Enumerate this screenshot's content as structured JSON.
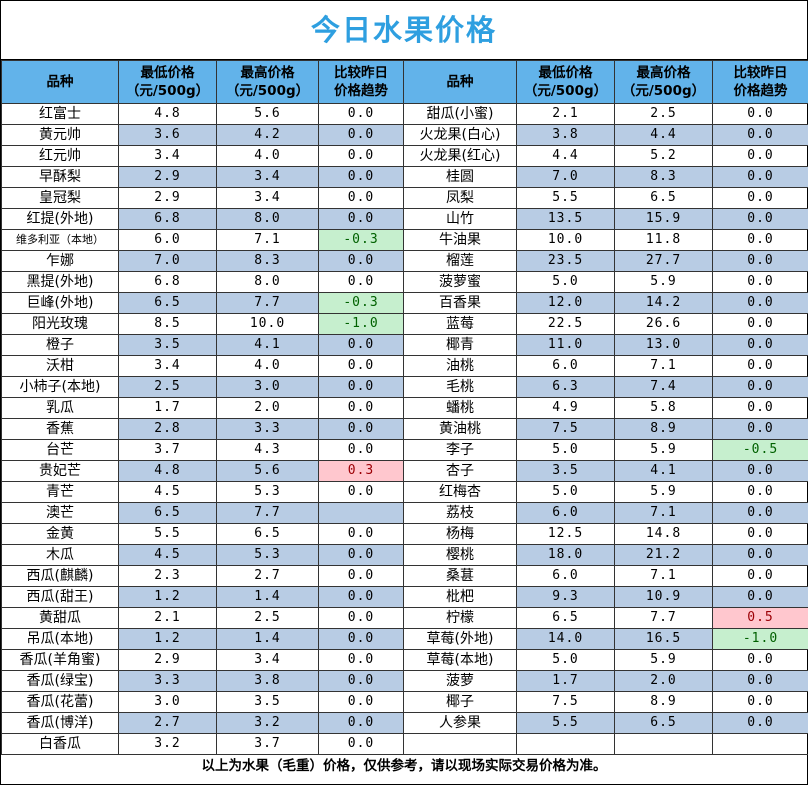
{
  "title": "今日水果价格",
  "headers": {
    "name": "品种",
    "low": "最低价格\n（元/500g）",
    "high": "最高价格\n（元/500g）",
    "trend": "比较昨日\n价格趋势"
  },
  "left_rows": [
    {
      "name": "红富士",
      "low": "4.8",
      "high": "5.6",
      "trend": "0.0"
    },
    {
      "name": "黄元帅",
      "low": "3.6",
      "high": "4.2",
      "trend": "0.0"
    },
    {
      "name": "红元帅",
      "low": "3.4",
      "high": "4.0",
      "trend": "0.0"
    },
    {
      "name": "早酥梨",
      "low": "2.9",
      "high": "3.4",
      "trend": "0.0"
    },
    {
      "name": "皇冠梨",
      "low": "2.9",
      "high": "3.4",
      "trend": "0.0"
    },
    {
      "name": "红提(外地)",
      "low": "6.8",
      "high": "8.0",
      "trend": "0.0"
    },
    {
      "name": "维多利亚（本地）",
      "low": "6.0",
      "high": "7.1",
      "trend": "-0.3"
    },
    {
      "name": "乍娜",
      "low": "7.0",
      "high": "8.3",
      "trend": "0.0"
    },
    {
      "name": "黑提(外地)",
      "low": "6.8",
      "high": "8.0",
      "trend": "0.0"
    },
    {
      "name": "巨峰(外地)",
      "low": "6.5",
      "high": "7.7",
      "trend": "-0.3"
    },
    {
      "name": "阳光玫瑰",
      "low": "8.5",
      "high": "10.0",
      "trend": "-1.0"
    },
    {
      "name": "橙子",
      "low": "3.5",
      "high": "4.1",
      "trend": "0.0"
    },
    {
      "name": "沃柑",
      "low": "3.4",
      "high": "4.0",
      "trend": "0.0"
    },
    {
      "name": "小柿子(本地)",
      "low": "2.5",
      "high": "3.0",
      "trend": "0.0"
    },
    {
      "name": "乳瓜",
      "low": "1.7",
      "high": "2.0",
      "trend": "0.0"
    },
    {
      "name": "香蕉",
      "low": "2.8",
      "high": "3.3",
      "trend": "0.0"
    },
    {
      "name": "台芒",
      "low": "3.7",
      "high": "4.3",
      "trend": "0.0"
    },
    {
      "name": "贵妃芒",
      "low": "4.8",
      "high": "5.6",
      "trend": "0.3"
    },
    {
      "name": "青芒",
      "low": "4.5",
      "high": "5.3",
      "trend": "0.0"
    },
    {
      "name": "澳芒",
      "low": "6.5",
      "high": "7.7",
      "trend": ""
    },
    {
      "name": "金黄",
      "low": "5.5",
      "high": "6.5",
      "trend": "0.0"
    },
    {
      "name": "木瓜",
      "low": "4.5",
      "high": "5.3",
      "trend": "0.0"
    },
    {
      "name": "西瓜(麒麟)",
      "low": "2.3",
      "high": "2.7",
      "trend": "0.0"
    },
    {
      "name": "西瓜(甜王)",
      "low": "1.2",
      "high": "1.4",
      "trend": "0.0"
    },
    {
      "name": "黄甜瓜",
      "low": "2.1",
      "high": "2.5",
      "trend": "0.0"
    },
    {
      "name": "吊瓜(本地)",
      "low": "1.2",
      "high": "1.4",
      "trend": "0.0"
    },
    {
      "name": "香瓜(羊角蜜)",
      "low": "2.9",
      "high": "3.4",
      "trend": "0.0"
    },
    {
      "name": "香瓜(绿宝)",
      "low": "3.3",
      "high": "3.8",
      "trend": "0.0"
    },
    {
      "name": "香瓜(花蕾)",
      "low": "3.0",
      "high": "3.5",
      "trend": "0.0"
    },
    {
      "name": "香瓜(博洋)",
      "low": "2.7",
      "high": "3.2",
      "trend": "0.0"
    },
    {
      "name": "白香瓜",
      "low": "3.2",
      "high": "3.7",
      "trend": "0.0"
    }
  ],
  "right_rows": [
    {
      "name": "甜瓜(小蜜)",
      "low": "2.1",
      "high": "2.5",
      "trend": "0.0"
    },
    {
      "name": "火龙果(白心)",
      "low": "3.8",
      "high": "4.4",
      "trend": "0.0"
    },
    {
      "name": "火龙果(红心)",
      "low": "4.4",
      "high": "5.2",
      "trend": "0.0"
    },
    {
      "name": "桂圆",
      "low": "7.0",
      "high": "8.3",
      "trend": "0.0"
    },
    {
      "name": "凤梨",
      "low": "5.5",
      "high": "6.5",
      "trend": "0.0"
    },
    {
      "name": "山竹",
      "low": "13.5",
      "high": "15.9",
      "trend": "0.0"
    },
    {
      "name": "牛油果",
      "low": "10.0",
      "high": "11.8",
      "trend": "0.0"
    },
    {
      "name": "榴莲",
      "low": "23.5",
      "high": "27.7",
      "trend": "0.0"
    },
    {
      "name": "菠萝蜜",
      "low": "5.0",
      "high": "5.9",
      "trend": "0.0"
    },
    {
      "name": "百香果",
      "low": "12.0",
      "high": "14.2",
      "trend": "0.0"
    },
    {
      "name": "蓝莓",
      "low": "22.5",
      "high": "26.6",
      "trend": "0.0"
    },
    {
      "name": "椰青",
      "low": "11.0",
      "high": "13.0",
      "trend": "0.0"
    },
    {
      "name": "油桃",
      "low": "6.0",
      "high": "7.1",
      "trend": "0.0"
    },
    {
      "name": "毛桃",
      "low": "6.3",
      "high": "7.4",
      "trend": "0.0"
    },
    {
      "name": "蟠桃",
      "low": "4.9",
      "high": "5.8",
      "trend": "0.0"
    },
    {
      "name": "黄油桃",
      "low": "7.5",
      "high": "8.9",
      "trend": "0.0"
    },
    {
      "name": "李子",
      "low": "5.0",
      "high": "5.9",
      "trend": "-0.5"
    },
    {
      "name": "杏子",
      "low": "3.5",
      "high": "4.1",
      "trend": "0.0"
    },
    {
      "name": "红梅杏",
      "low": "5.0",
      "high": "5.9",
      "trend": "0.0"
    },
    {
      "name": "荔枝",
      "low": "6.0",
      "high": "7.1",
      "trend": "0.0"
    },
    {
      "name": "杨梅",
      "low": "12.5",
      "high": "14.8",
      "trend": "0.0"
    },
    {
      "name": "樱桃",
      "low": "18.0",
      "high": "21.2",
      "trend": "0.0"
    },
    {
      "name": "桑葚",
      "low": "6.0",
      "high": "7.1",
      "trend": "0.0"
    },
    {
      "name": "枇杷",
      "low": "9.3",
      "high": "10.9",
      "trend": "0.0"
    },
    {
      "name": "柠檬",
      "low": "6.5",
      "high": "7.7",
      "trend": "0.5"
    },
    {
      "name": "草莓(外地)",
      "low": "14.0",
      "high": "16.5",
      "trend": "-1.0"
    },
    {
      "name": "草莓(本地)",
      "low": "5.0",
      "high": "5.9",
      "trend": "0.0"
    },
    {
      "name": "菠萝",
      "low": "1.7",
      "high": "2.0",
      "trend": "0.0"
    },
    {
      "name": "椰子",
      "low": "7.5",
      "high": "8.9",
      "trend": "0.0"
    },
    {
      "name": "人参果",
      "low": "5.5",
      "high": "6.5",
      "trend": "0.0"
    },
    {
      "name": "",
      "low": "",
      "high": "",
      "trend": ""
    }
  ],
  "footer": "以上为水果（毛重）价格，仅供参考，请以现场实际交易价格为准。",
  "colors": {
    "title": "#2e9fe0",
    "header_bg": "#62b3ea",
    "alt_row": "#b8cce4",
    "down_bg": "#c6efce",
    "up_bg": "#ffc7ce"
  }
}
